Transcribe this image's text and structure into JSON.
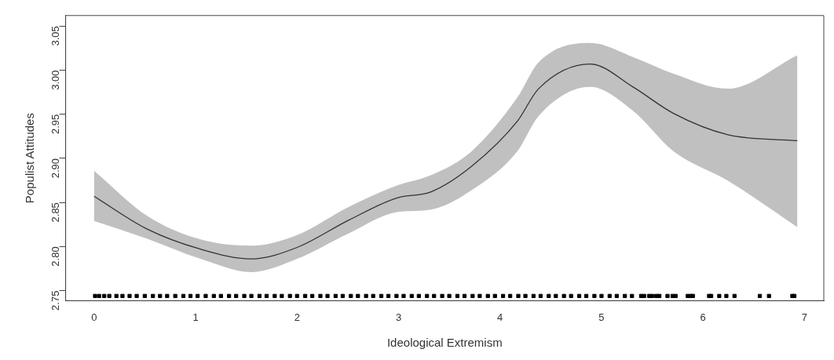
{
  "chart_data": {
    "type": "line",
    "xlabel": "Ideological Extremism",
    "ylabel": "Populist Attitudes",
    "xlim": [
      -0.28,
      7.19
    ],
    "ylim": [
      2.7386,
      3.062
    ],
    "xticks": [
      0,
      1,
      2,
      3,
      4,
      5,
      6,
      7
    ],
    "yticks": [
      {
        "value": 2.75,
        "label": "2.75"
      },
      {
        "value": 2.8,
        "label": "2.80"
      },
      {
        "value": 2.85,
        "label": "2.85"
      },
      {
        "value": 2.9,
        "label": "2.90"
      },
      {
        "value": 2.95,
        "label": "2.95"
      },
      {
        "value": 3.0,
        "label": "3.00"
      },
      {
        "value": 3.05,
        "label": "3.05"
      }
    ],
    "grid": false,
    "legend": false,
    "series": [
      {
        "color": "#333333",
        "x": [
          0,
          0.52,
          1.05,
          1.55,
          2.0,
          2.51,
          2.98,
          3.32,
          3.72,
          4.17,
          4.38,
          4.89,
          5.31,
          5.71,
          6.24,
          6.93
        ],
        "values": [
          2.857,
          2.82,
          2.797,
          2.786,
          2.799,
          2.83,
          2.855,
          2.862,
          2.891,
          2.942,
          2.979,
          3.007,
          2.981,
          2.951,
          2.927,
          2.92
        ],
        "lower": [
          2.829,
          2.809,
          2.786,
          2.771,
          2.786,
          2.815,
          2.839,
          2.842,
          2.864,
          2.908,
          2.948,
          2.981,
          2.954,
          2.908,
          2.875,
          2.822
        ],
        "upper": [
          2.886,
          2.835,
          2.808,
          2.801,
          2.813,
          2.845,
          2.869,
          2.881,
          2.908,
          2.969,
          3.009,
          3.031,
          3.015,
          2.996,
          2.979,
          3.017
        ]
      },
      {
        "type": "scatter",
        "color": "#000000",
        "marker": "square",
        "x": [
          0.01,
          0.05,
          0.1,
          0.15,
          0.22,
          0.28,
          0.35,
          0.42,
          0.5,
          0.58,
          0.65,
          0.72,
          0.8,
          0.88,
          0.95,
          1.02,
          1.1,
          1.18,
          1.25,
          1.33,
          1.4,
          1.48,
          1.55,
          1.63,
          1.7,
          1.78,
          1.85,
          1.93,
          2.0,
          2.08,
          2.15,
          2.23,
          2.3,
          2.38,
          2.45,
          2.53,
          2.6,
          2.68,
          2.75,
          2.83,
          2.9,
          2.98,
          3.05,
          3.13,
          3.2,
          3.28,
          3.35,
          3.43,
          3.5,
          3.58,
          3.65,
          3.73,
          3.8,
          3.88,
          3.95,
          4.03,
          4.1,
          4.18,
          4.25,
          4.33,
          4.4,
          4.48,
          4.55,
          4.63,
          4.7,
          4.78,
          4.85,
          4.93,
          5.0,
          5.08,
          5.15,
          5.23,
          5.3,
          5.39,
          5.42,
          5.47,
          5.5,
          5.54,
          5.57,
          5.65,
          5.7,
          5.73,
          5.85,
          5.88,
          5.9,
          6.06,
          6.08,
          6.16,
          6.23,
          6.31,
          6.56,
          6.65,
          6.88,
          6.9
        ],
        "values": [
          2.744,
          2.744,
          2.744,
          2.744,
          2.744,
          2.744,
          2.744,
          2.744,
          2.744,
          2.744,
          2.744,
          2.744,
          2.744,
          2.744,
          2.744,
          2.744,
          2.744,
          2.744,
          2.744,
          2.744,
          2.744,
          2.744,
          2.744,
          2.744,
          2.744,
          2.744,
          2.744,
          2.744,
          2.744,
          2.744,
          2.744,
          2.744,
          2.744,
          2.744,
          2.744,
          2.744,
          2.744,
          2.744,
          2.744,
          2.744,
          2.744,
          2.744,
          2.744,
          2.744,
          2.744,
          2.744,
          2.744,
          2.744,
          2.744,
          2.744,
          2.744,
          2.744,
          2.744,
          2.744,
          2.744,
          2.744,
          2.744,
          2.744,
          2.744,
          2.744,
          2.744,
          2.744,
          2.744,
          2.744,
          2.744,
          2.744,
          2.744,
          2.744,
          2.744,
          2.744,
          2.744,
          2.744,
          2.744,
          2.744,
          2.744,
          2.744,
          2.744,
          2.744,
          2.744,
          2.744,
          2.744,
          2.744,
          2.744,
          2.744,
          2.744,
          2.744,
          2.744,
          2.744,
          2.744,
          2.744,
          2.744,
          2.744,
          2.744,
          2.744
        ]
      }
    ]
  }
}
